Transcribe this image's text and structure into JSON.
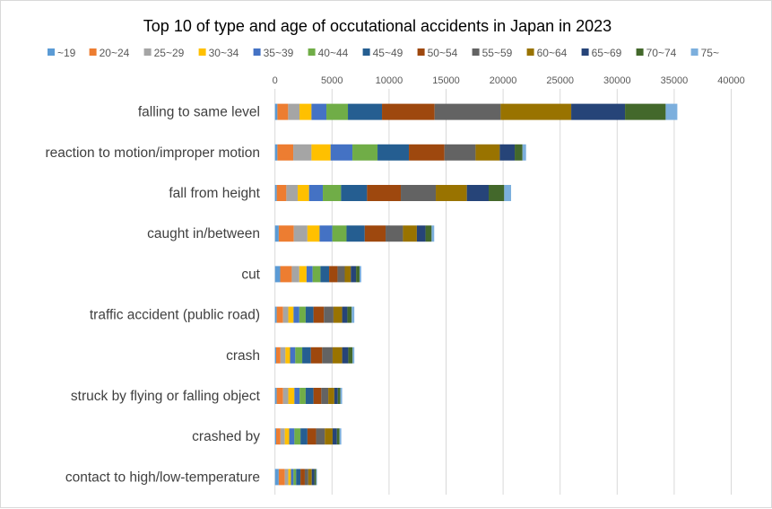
{
  "chart_data": {
    "type": "bar",
    "orientation": "horizontal",
    "stacked": true,
    "title": "Top 10 of type and age of occutational accidents in Japan in 2023",
    "xlabel": "",
    "ylabel": "",
    "xlim": [
      0,
      40000
    ],
    "xticks": [
      0,
      5000,
      10000,
      15000,
      20000,
      25000,
      30000,
      35000,
      40000
    ],
    "grid": true,
    "legend_position": "top",
    "categories": [
      "falling to same level",
      "reaction to motion/improper motion",
      "fall from height",
      "caught in/between",
      "cut",
      "traffic accident (public road)",
      "crash",
      "struck by flying or falling object",
      "crashed by",
      "contact to high/low-temperature"
    ],
    "series": [
      {
        "name": "~19",
        "color": "#5B9BD5",
        "values": [
          210,
          210,
          157,
          330,
          457,
          152,
          102,
          152,
          102,
          330
        ]
      },
      {
        "name": "20~24",
        "color": "#ED7D31",
        "values": [
          943,
          1389,
          839,
          1320,
          1015,
          558,
          381,
          558,
          381,
          533
        ]
      },
      {
        "name": "25~29",
        "color": "#A5A5A5",
        "values": [
          996,
          1599,
          996,
          1193,
          660,
          457,
          432,
          457,
          381,
          305
        ]
      },
      {
        "name": "30~34",
        "color": "#FFC000",
        "values": [
          1048,
          1677,
          996,
          1066,
          635,
          457,
          406,
          533,
          381,
          228
        ]
      },
      {
        "name": "35~39",
        "color": "#4472C4",
        "values": [
          1310,
          1913,
          1205,
          1117,
          533,
          508,
          457,
          457,
          457,
          228
        ]
      },
      {
        "name": "40~44",
        "color": "#70AD47",
        "values": [
          1887,
          2201,
          1598,
          1244,
          685,
          558,
          609,
          533,
          533,
          228
        ]
      },
      {
        "name": "45~49",
        "color": "#255E91",
        "values": [
          2988,
          2752,
          2280,
          1599,
          761,
          685,
          761,
          685,
          609,
          381
        ]
      },
      {
        "name": "50~54",
        "color": "#9E480E",
        "values": [
          4613,
          3119,
          2961,
          1827,
          736,
          914,
          990,
          685,
          761,
          381
        ]
      },
      {
        "name": "55~59",
        "color": "#636363",
        "values": [
          5792,
          2725,
          3066,
          1523,
          635,
          838,
          914,
          609,
          761,
          305
        ]
      },
      {
        "name": "60~64",
        "color": "#997300",
        "values": [
          6185,
          2123,
          2725,
          1218,
          533,
          761,
          838,
          533,
          685,
          305
        ]
      },
      {
        "name": "65~69",
        "color": "#264478",
        "values": [
          4718,
          1310,
          1913,
          761,
          457,
          457,
          533,
          305,
          381,
          228
        ]
      },
      {
        "name": "70~74",
        "color": "#43682B",
        "values": [
          3564,
          681,
          1362,
          533,
          305,
          381,
          381,
          228,
          228,
          152
        ]
      },
      {
        "name": "75~",
        "color": "#7CAFDD",
        "values": [
          1022,
          314,
          603,
          228,
          152,
          228,
          152,
          152,
          152,
          76
        ]
      }
    ]
  }
}
